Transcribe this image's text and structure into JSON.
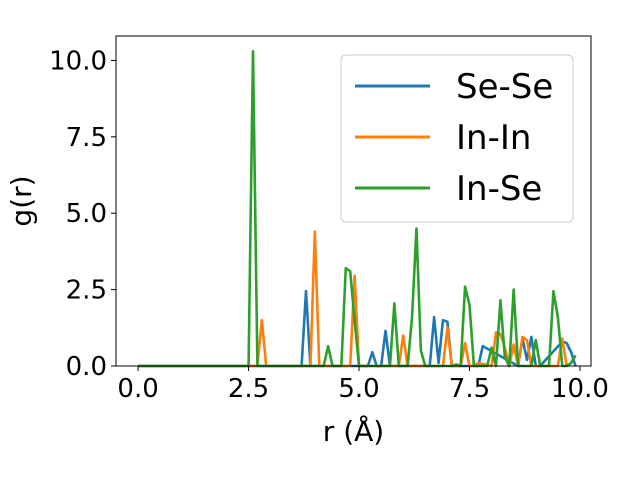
{
  "chart_data": {
    "type": "line",
    "xlabel": "r (Å)",
    "ylabel": "g(r)",
    "xlim": [
      -0.5,
      10.25
    ],
    "ylim": [
      0,
      10.8
    ],
    "xticks": [
      0.0,
      2.5,
      5.0,
      7.5,
      10.0
    ],
    "xtick_labels": [
      "0.0",
      "2.5",
      "5.0",
      "7.5",
      "10.0"
    ],
    "yticks": [
      0.0,
      2.5,
      5.0,
      7.5,
      10.0
    ],
    "ytick_labels": [
      "0.0",
      "2.5",
      "5.0",
      "7.5",
      "10.0"
    ],
    "grid": false,
    "legend_position": "top-right",
    "series": [
      {
        "name": "Se-Se",
        "color": "#1f77b4",
        "x": [
          0,
          3.7,
          3.8,
          3.9,
          5.2,
          5.3,
          5.4,
          5.5,
          5.6,
          5.7,
          6.6,
          6.7,
          6.8,
          6.9,
          7.0,
          7.1,
          7.7,
          7.8,
          8.6,
          8.7,
          8.8,
          8.9,
          9.0,
          9.1,
          9.6,
          9.7,
          9.8,
          9.9
        ],
        "y": [
          0,
          0,
          2.45,
          0,
          0,
          0.45,
          0,
          0,
          1.15,
          0,
          0,
          1.6,
          0.1,
          1.5,
          1.45,
          0,
          0,
          0.65,
          0,
          0.9,
          0.2,
          0.95,
          0,
          0,
          0.8,
          0.75,
          0.45,
          0
        ]
      },
      {
        "name": "In-In",
        "color": "#ff7f0e",
        "x": [
          0,
          2.7,
          2.8,
          2.9,
          3.9,
          4.0,
          4.1,
          4.8,
          4.9,
          5.0,
          5.9,
          6.0,
          6.1,
          6.9,
          7.0,
          7.1,
          7.3,
          7.4,
          7.5,
          7.6,
          7.7,
          8.0,
          8.1,
          8.2,
          8.3,
          8.4,
          8.5,
          8.6,
          8.7,
          8.8,
          8.9,
          9.5,
          9.6,
          9.7
        ],
        "y": [
          0,
          0,
          1.5,
          0,
          0,
          4.4,
          0,
          0,
          2.95,
          0,
          0,
          1.0,
          0,
          0,
          1.25,
          0,
          0,
          0.75,
          0,
          0,
          0.1,
          0,
          1.1,
          1.05,
          0.6,
          0,
          0.7,
          0,
          0.95,
          0.85,
          0,
          0,
          0.9,
          0
        ]
      },
      {
        "name": "In-Se",
        "color": "#2ca02c",
        "x": [
          0,
          2.5,
          2.6,
          2.7,
          4.2,
          4.3,
          4.4,
          4.6,
          4.7,
          4.8,
          4.9,
          5.0,
          5.7,
          5.8,
          5.9,
          6.1,
          6.2,
          6.3,
          6.4,
          6.5,
          7.1,
          7.2,
          7.3,
          7.4,
          7.5,
          7.6,
          7.9,
          8.0,
          8.1,
          8.2,
          8.3,
          8.4,
          8.5,
          8.6,
          8.9,
          9.0,
          9.1,
          9.3,
          9.4,
          9.5,
          9.6,
          9.7,
          9.8,
          9.9
        ],
        "y": [
          0,
          0,
          10.3,
          0,
          0,
          0.65,
          0,
          0,
          3.2,
          3.1,
          1.5,
          0,
          0,
          2.05,
          0,
          0,
          1.6,
          4.5,
          0.5,
          0,
          0,
          0.05,
          0,
          2.6,
          2.0,
          0,
          0,
          0.6,
          0,
          2.15,
          0.3,
          0,
          2.5,
          0,
          0,
          0.85,
          0,
          0,
          2.45,
          1.6,
          0,
          0,
          0.1,
          0.35
        ]
      }
    ]
  }
}
